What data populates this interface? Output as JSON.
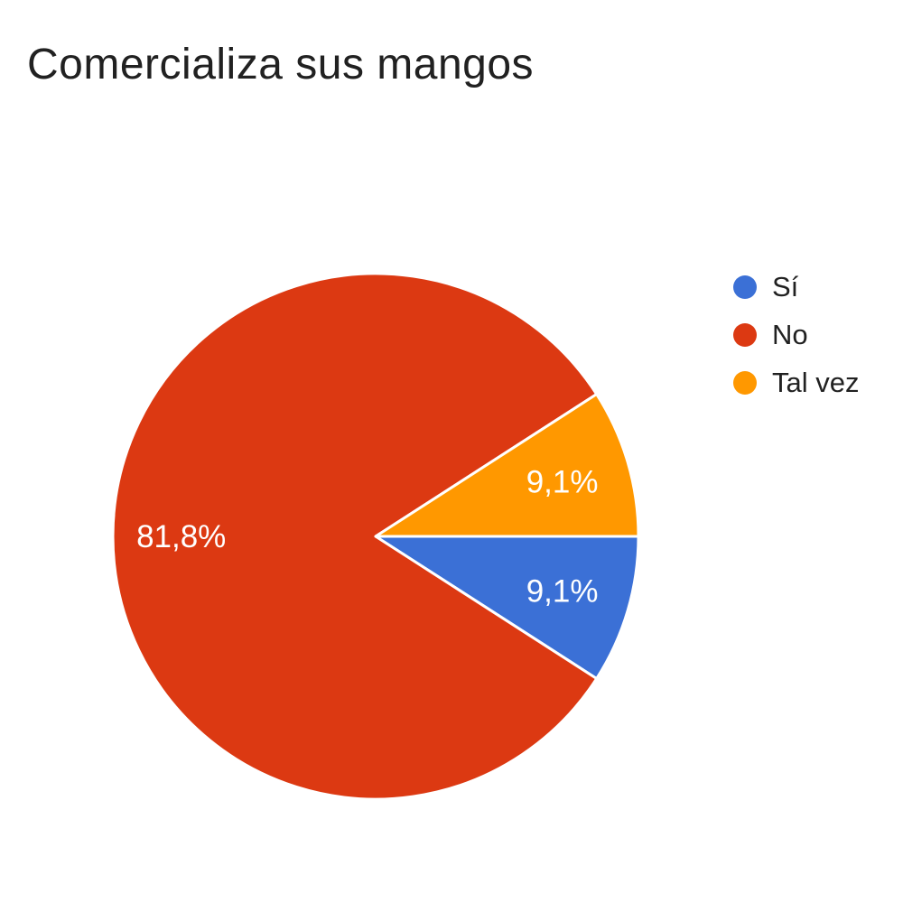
{
  "page": {
    "background": "#ffffff"
  },
  "title": {
    "text": "Comercializa sus mangos",
    "color": "#212121"
  },
  "chart_data": {
    "type": "pie",
    "title": "Comercializa sus mangos",
    "categories": [
      "Sí",
      "No",
      "Tal vez"
    ],
    "values": [
      9.1,
      81.8,
      9.1
    ],
    "value_labels": [
      "9,1%",
      "81,8%",
      "9,1%"
    ],
    "colors": {
      "Sí": "#3b70d6",
      "No": "#dc3912",
      "Tal vez": "#ff9800"
    },
    "slice_label_color": "#ffffff",
    "slice_border_color": "#ffffff",
    "legend_position": "right",
    "start_angle_deg": 0,
    "direction": "clockwise"
  },
  "legend": {
    "items": [
      {
        "label": "Sí",
        "color": "#3b70d6"
      },
      {
        "label": "No",
        "color": "#dc3912"
      },
      {
        "label": "Tal vez",
        "color": "#ff9800"
      }
    ]
  }
}
